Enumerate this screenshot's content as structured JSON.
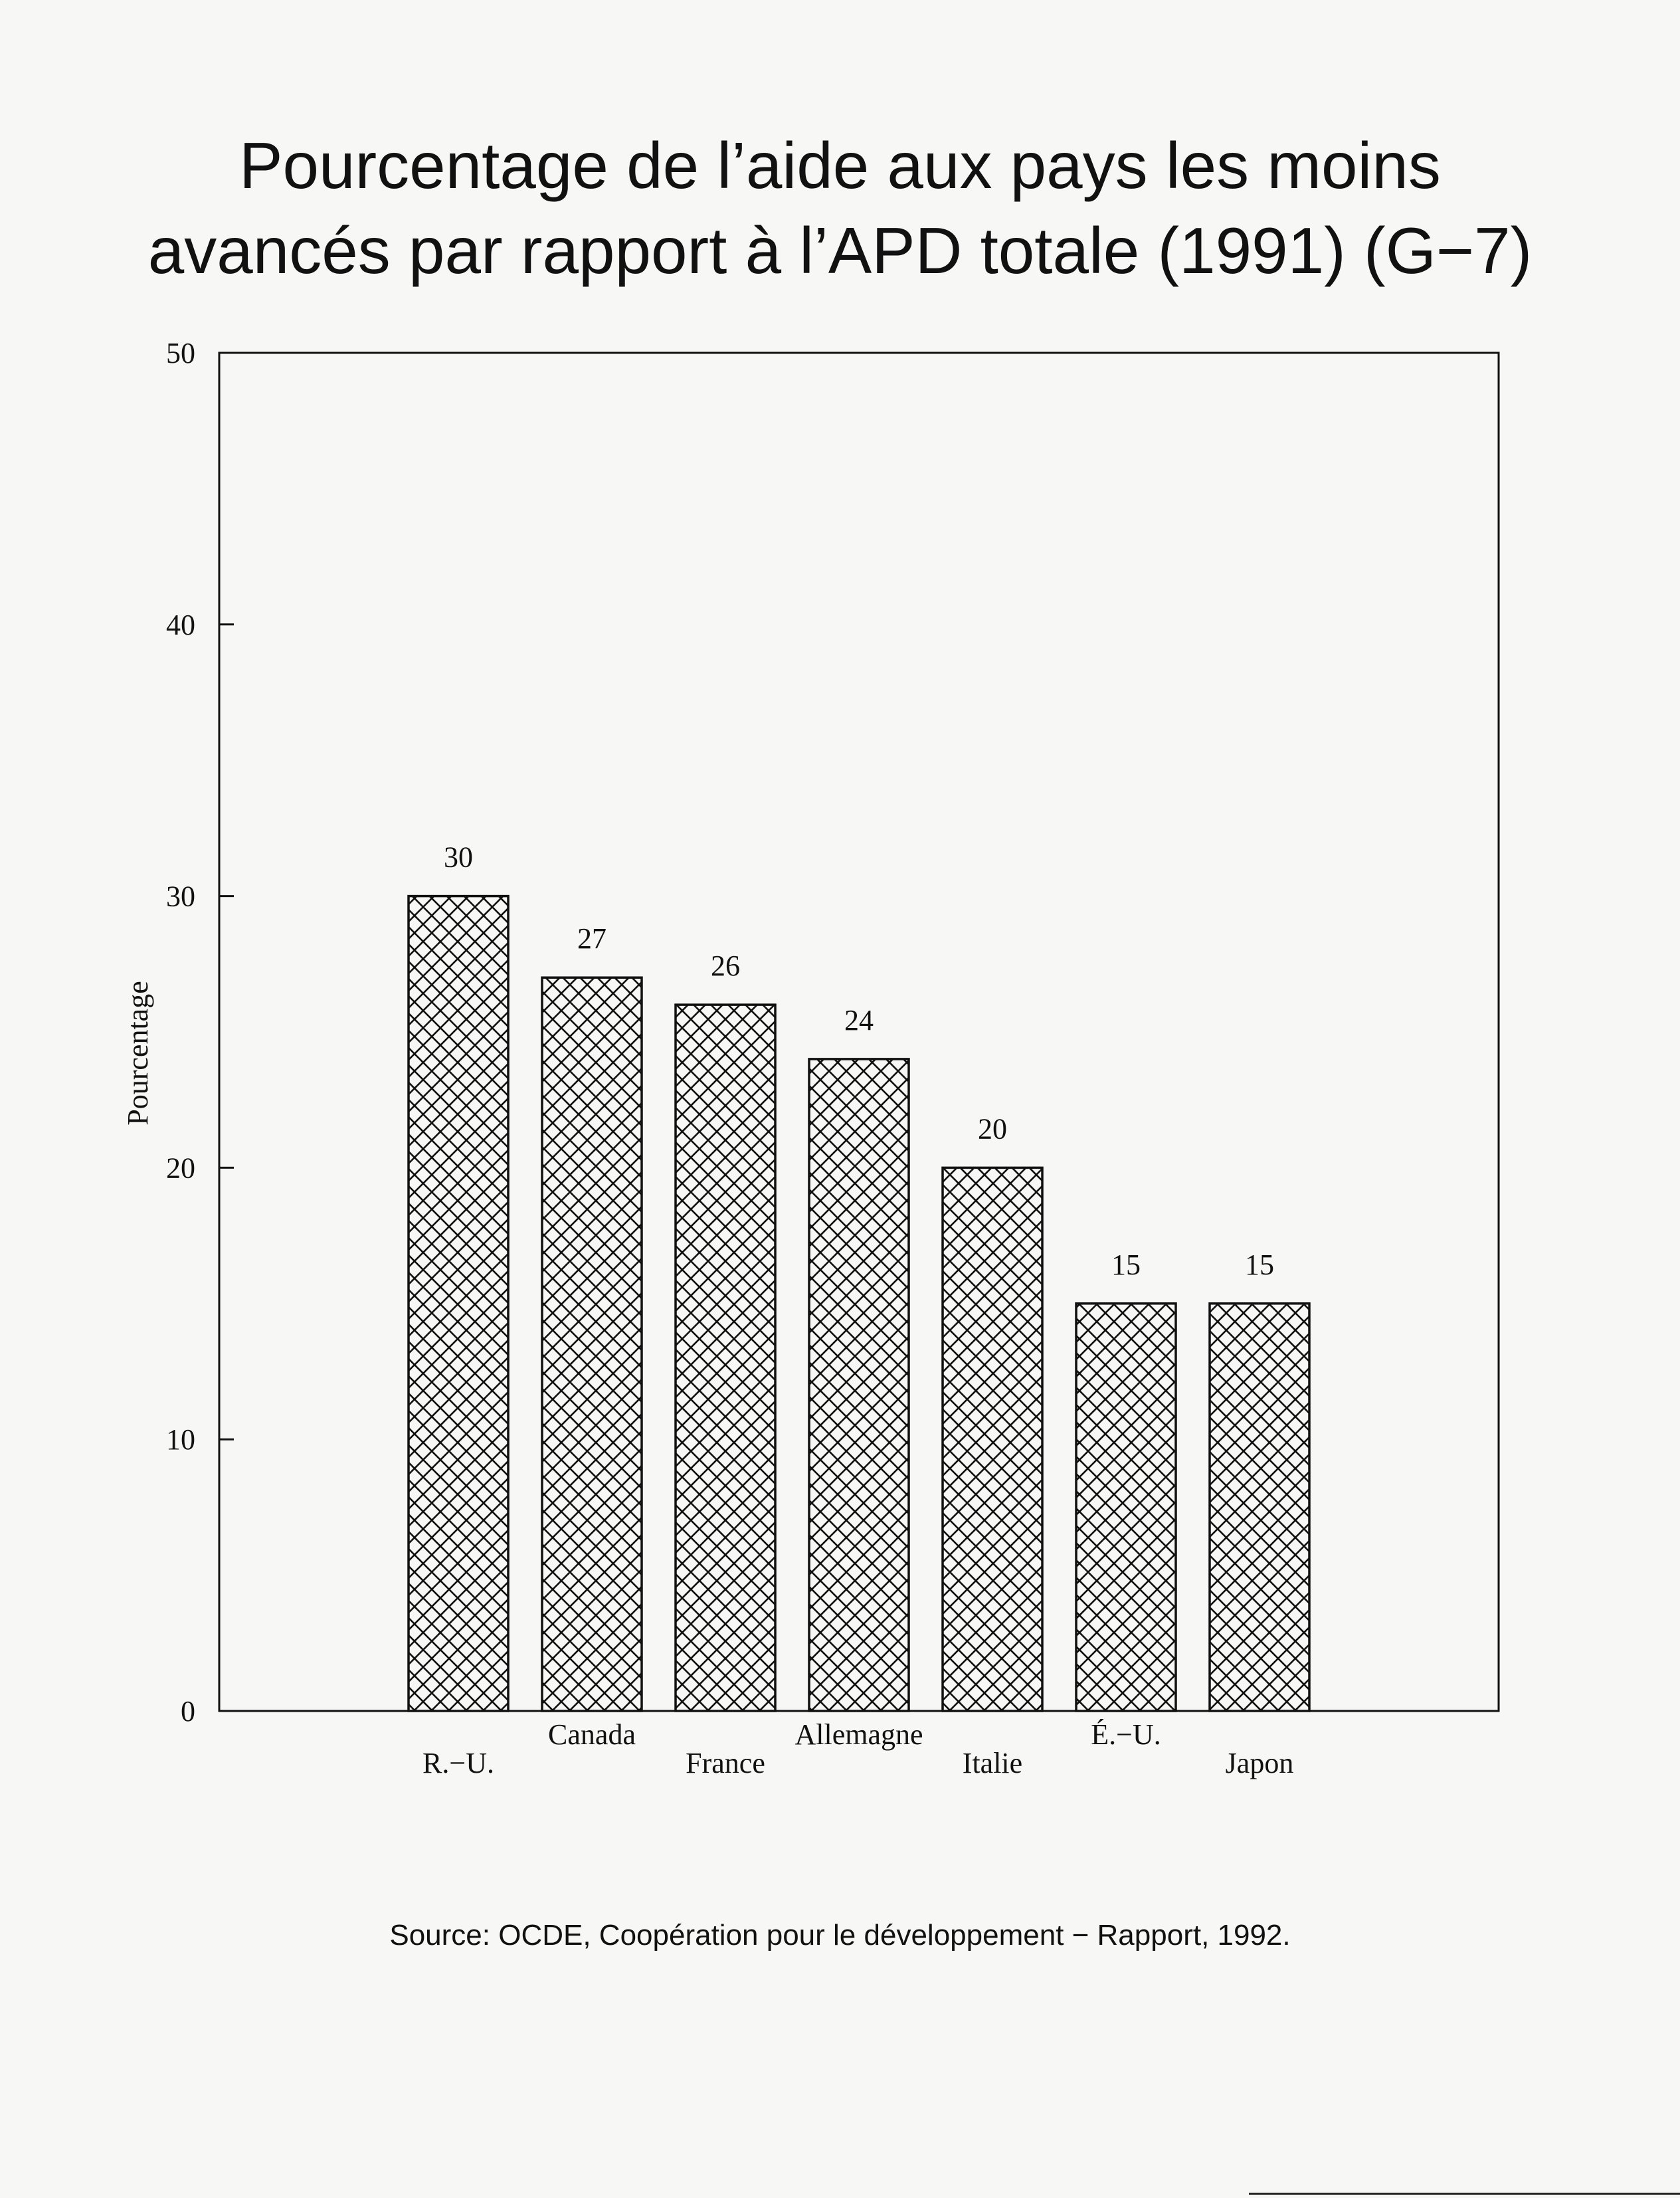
{
  "title_lines": [
    "Pourcentage de l’aide aux pays les moins",
    "avancés par rapport à l’APD totale (1991) (G−7)"
  ],
  "source": "Source:  OCDE, Coopération pour le développement  −  Rapport, 1992.",
  "chart_data": {
    "type": "bar",
    "title": "Pourcentage de l’aide aux pays les moins avancés par rapport à l’APD totale (1991) (G−7)",
    "xlabel": "",
    "ylabel": "Pourcentage",
    "categories": [
      "R.−U.",
      "Canada",
      "France",
      "Allemagne",
      "Italie",
      "É.−U.",
      "Japon"
    ],
    "values": [
      30,
      27,
      26,
      24,
      20,
      15,
      15
    ],
    "data_labels": [
      "30",
      "27",
      "26",
      "24",
      "20",
      "15",
      "15"
    ],
    "ylim": [
      0,
      50
    ],
    "yticks": [
      0,
      10,
      20,
      30,
      40,
      50
    ],
    "ytick_labels": [
      "0",
      "10",
      "20",
      "30",
      "40",
      "50"
    ],
    "grid": false,
    "legend": "none",
    "bar_fill": "crosshatch",
    "colors": {
      "bar_stroke": "#111111",
      "hatch": "#111111",
      "background": "#f7f7f5"
    }
  }
}
